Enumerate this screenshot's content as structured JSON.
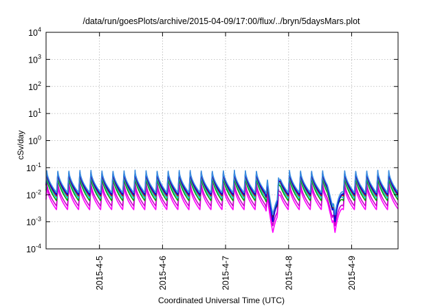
{
  "chart_data": {
    "type": "line",
    "title": "/data/run/goesPlots/archive/2015-04-09/17:00/flux/../bryn/5daysMars.plot",
    "xlabel": "Coordinated Universal Time (UTC)",
    "ylabel": "cSv/day",
    "yscale": "log",
    "ylim": [
      0.0001,
      10000
    ],
    "xlim": [
      "2015-04-04 03:40",
      "2015-04-09 17:40"
    ],
    "x_ticks": [
      {
        "label": "2015-4-5",
        "value": "2015-04-05"
      },
      {
        "label": "2015-4-6",
        "value": "2015-04-06"
      },
      {
        "label": "2015-4-7",
        "value": "2015-04-07"
      },
      {
        "label": "2015-4-8",
        "value": "2015-04-08"
      },
      {
        "label": "2015-4-9",
        "value": "2015-04-09"
      }
    ],
    "y_ticks": [
      {
        "base": "10",
        "exp": "-4",
        "value": 0.0001
      },
      {
        "base": "10",
        "exp": "-3",
        "value": 0.001
      },
      {
        "base": "10",
        "exp": "-2",
        "value": 0.01
      },
      {
        "base": "10",
        "exp": "-1",
        "value": 0.1
      },
      {
        "base": "10",
        "exp": "0",
        "value": 1
      },
      {
        "base": "10",
        "exp": "1",
        "value": 10
      },
      {
        "base": "10",
        "exp": "2",
        "value": 100
      },
      {
        "base": "10",
        "exp": "3",
        "value": 1000
      },
      {
        "base": "10",
        "exp": "4",
        "value": 10000
      }
    ],
    "grid": true,
    "legend": "none",
    "sawtooth_period_hours": 4.2,
    "dips": [
      {
        "time": "2015-04-07 18:00",
        "width_hours": 3
      },
      {
        "time": "2015-04-08 17:40",
        "width_hours": 3
      }
    ],
    "series": [
      {
        "color": "#ff00ff",
        "peak": 0.022,
        "trough": 0.0028,
        "dip_min": 0.0004
      },
      {
        "color": "#c800c8",
        "peak": 0.03,
        "trough": 0.0038,
        "dip_min": 0.0007
      },
      {
        "color": "#00a000",
        "peak": 0.05,
        "trough": 0.006,
        "dip_min": 0.0015
      },
      {
        "color": "#00c8c8",
        "peak": 0.06,
        "trough": 0.0075,
        "dip_min": 0.002
      },
      {
        "color": "#cc0000",
        "peak": 0.07,
        "trough": 0.009,
        "dip_min": 0.0012
      },
      {
        "color": "#0000dd",
        "peak": 0.075,
        "trough": 0.01,
        "dip_min": 0.001
      },
      {
        "color": "#3b8fe0",
        "peak": 0.082,
        "trough": 0.012,
        "dip_min": 0.0018
      }
    ]
  }
}
